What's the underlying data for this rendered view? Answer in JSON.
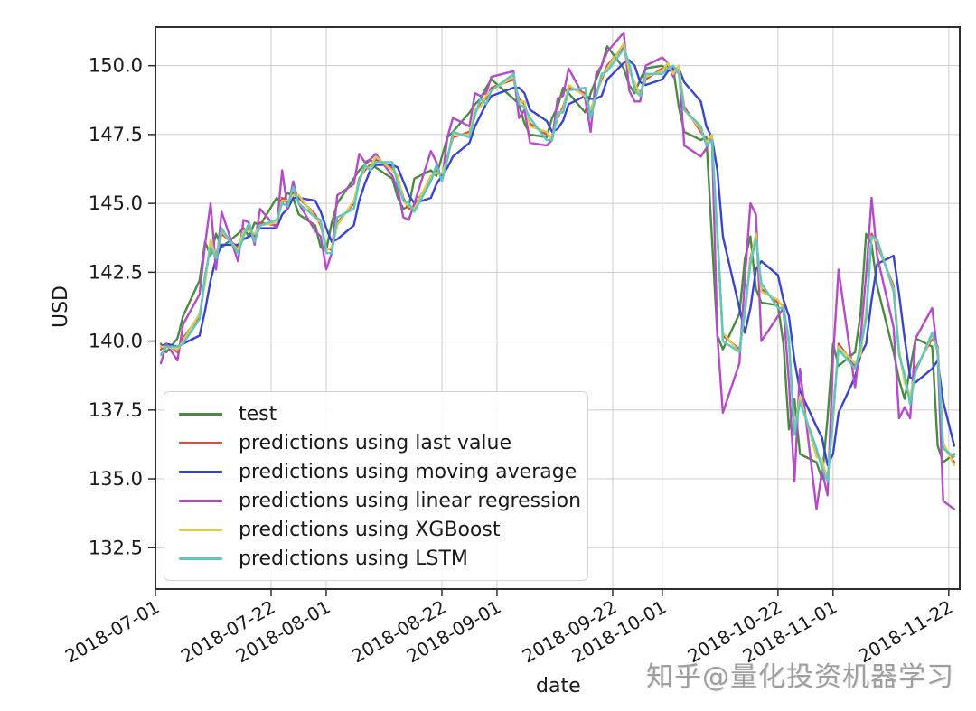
{
  "figure": {
    "watermark": "知乎@量化投资机器学习"
  },
  "chart_data": {
    "type": "line",
    "title": "",
    "xlabel": "date",
    "ylabel": "USD",
    "grid": true,
    "legend_position": "lower left",
    "ylim": [
      131.0,
      151.4
    ],
    "x_range": [
      "2018-07-01",
      "2018-11-24"
    ],
    "y_ticks": [
      132.5,
      135.0,
      137.5,
      140.0,
      142.5,
      145.0,
      147.5,
      150.0
    ],
    "x_ticks": [
      "2018-07-01",
      "2018-07-22",
      "2018-08-01",
      "2018-08-22",
      "2018-09-01",
      "2018-09-22",
      "2018-10-01",
      "2018-10-22",
      "2018-11-01",
      "2018-11-22"
    ],
    "dates": [
      "2018-07-02",
      "2018-07-03",
      "2018-07-05",
      "2018-07-06",
      "2018-07-09",
      "2018-07-10",
      "2018-07-11",
      "2018-07-12",
      "2018-07-13",
      "2018-07-16",
      "2018-07-17",
      "2018-07-18",
      "2018-07-19",
      "2018-07-20",
      "2018-07-23",
      "2018-07-24",
      "2018-07-25",
      "2018-07-26",
      "2018-07-27",
      "2018-07-30",
      "2018-07-31",
      "2018-08-01",
      "2018-08-02",
      "2018-08-03",
      "2018-08-06",
      "2018-08-07",
      "2018-08-08",
      "2018-08-09",
      "2018-08-10",
      "2018-08-13",
      "2018-08-14",
      "2018-08-15",
      "2018-08-16",
      "2018-08-17",
      "2018-08-20",
      "2018-08-21",
      "2018-08-22",
      "2018-08-23",
      "2018-08-24",
      "2018-08-27",
      "2018-08-28",
      "2018-08-29",
      "2018-08-30",
      "2018-08-31",
      "2018-09-04",
      "2018-09-05",
      "2018-09-06",
      "2018-09-07",
      "2018-09-10",
      "2018-09-11",
      "2018-09-12",
      "2018-09-13",
      "2018-09-14",
      "2018-09-17",
      "2018-09-18",
      "2018-09-19",
      "2018-09-20",
      "2018-09-21",
      "2018-09-24",
      "2018-09-25",
      "2018-09-26",
      "2018-09-27",
      "2018-09-28",
      "2018-10-01",
      "2018-10-02",
      "2018-10-03",
      "2018-10-04",
      "2018-10-05",
      "2018-10-08",
      "2018-10-09",
      "2018-10-10",
      "2018-10-11",
      "2018-10-12",
      "2018-10-15",
      "2018-10-16",
      "2018-10-17",
      "2018-10-18",
      "2018-10-19",
      "2018-10-22",
      "2018-10-23",
      "2018-10-24",
      "2018-10-25",
      "2018-10-26",
      "2018-10-29",
      "2018-10-30",
      "2018-10-31",
      "2018-11-01",
      "2018-11-02",
      "2018-11-05",
      "2018-11-06",
      "2018-11-07",
      "2018-11-08",
      "2018-11-09",
      "2018-11-12",
      "2018-11-13",
      "2018-11-14",
      "2018-11-15",
      "2018-11-16",
      "2018-11-19",
      "2018-11-20",
      "2018-11-21",
      "2018-11-23"
    ],
    "series": [
      {
        "id": "test",
        "name": "test",
        "color": "#4a8c3f",
        "values": [
          139.9,
          139.6,
          140.1,
          140.9,
          142.2,
          143.6,
          143.1,
          143.9,
          143.4,
          143.9,
          144.1,
          143.8,
          144.3,
          144.2,
          145.2,
          145.0,
          145.4,
          145.2,
          144.6,
          144.2,
          143.4,
          143.3,
          144.3,
          145.0,
          145.9,
          146.2,
          146.4,
          146.6,
          146.3,
          145.9,
          145.2,
          144.8,
          144.9,
          145.9,
          146.2,
          146.0,
          146.7,
          147.4,
          147.6,
          148.3,
          148.6,
          148.8,
          149.2,
          149.5,
          148.8,
          148.6,
          147.9,
          147.5,
          147.4,
          148.1,
          148.5,
          149.2,
          149.0,
          148.3,
          149.0,
          149.5,
          150.0,
          150.7,
          149.9,
          149.3,
          149.0,
          149.5,
          149.9,
          150.0,
          149.8,
          149.9,
          148.5,
          147.6,
          147.3,
          147.4,
          143.8,
          140.2,
          139.7,
          141.0,
          143.0,
          143.8,
          141.9,
          141.4,
          141.3,
          139.9,
          136.8,
          137.9,
          135.9,
          135.6,
          135.0,
          137.2,
          139.9,
          139.1,
          139.6,
          141.0,
          143.9,
          143.5,
          142.0,
          139.6,
          138.6,
          137.9,
          139.0,
          140.1,
          139.8,
          136.2,
          135.6,
          135.9
        ]
      },
      {
        "id": "last-value",
        "name": "predictions using last value",
        "color": "#e0493e",
        "values": [
          139.7,
          139.9,
          139.6,
          140.1,
          140.9,
          142.2,
          143.6,
          143.1,
          143.9,
          143.4,
          143.9,
          144.1,
          143.8,
          144.3,
          144.2,
          145.2,
          145.0,
          145.4,
          145.2,
          144.6,
          144.2,
          143.4,
          143.3,
          144.3,
          145.0,
          145.9,
          146.2,
          146.4,
          146.6,
          146.3,
          145.9,
          145.2,
          144.8,
          144.9,
          145.9,
          146.2,
          146.0,
          146.7,
          147.4,
          147.6,
          148.3,
          148.6,
          148.8,
          149.2,
          149.5,
          148.8,
          148.6,
          147.9,
          147.5,
          147.4,
          148.1,
          148.5,
          149.2,
          149.0,
          148.3,
          149.0,
          149.5,
          150.0,
          150.7,
          149.9,
          149.3,
          149.0,
          149.5,
          149.9,
          150.0,
          149.8,
          149.9,
          148.5,
          147.6,
          147.3,
          147.4,
          143.8,
          140.2,
          139.7,
          141.0,
          143.0,
          143.8,
          141.9,
          141.4,
          141.3,
          139.9,
          136.8,
          137.9,
          135.9,
          135.6,
          135.0,
          137.2,
          139.9,
          139.1,
          139.6,
          141.0,
          143.9,
          143.5,
          142.0,
          139.6,
          138.6,
          137.9,
          139.0,
          140.1,
          139.8,
          136.2,
          135.6
        ]
      },
      {
        "id": "moving-average",
        "name": "predictions using moving average",
        "color": "#3a45cf",
        "values": [
          139.8,
          139.9,
          139.8,
          139.9,
          140.2,
          141.1,
          142.2,
          143.0,
          143.5,
          143.5,
          143.7,
          143.8,
          143.9,
          144.1,
          144.1,
          144.6,
          144.8,
          145.2,
          145.2,
          145.1,
          144.7,
          144.1,
          143.6,
          143.7,
          144.2,
          145.1,
          145.7,
          146.2,
          146.4,
          146.4,
          146.3,
          145.8,
          145.3,
          145.0,
          145.2,
          145.7,
          146.0,
          146.3,
          146.7,
          147.2,
          147.8,
          148.2,
          148.6,
          148.9,
          149.2,
          149.2,
          149.0,
          148.4,
          148.0,
          147.6,
          147.7,
          148.0,
          148.6,
          148.9,
          148.8,
          148.8,
          148.9,
          149.5,
          150.1,
          150.2,
          150.0,
          149.4,
          149.3,
          149.5,
          149.8,
          149.9,
          149.9,
          149.4,
          148.7,
          147.8,
          147.4,
          146.2,
          143.8,
          141.2,
          140.3,
          141.2,
          142.6,
          142.9,
          142.4,
          141.5,
          140.9,
          139.3,
          138.2,
          136.9,
          136.5,
          135.5,
          135.9,
          137.4,
          138.7,
          139.5,
          139.9,
          141.5,
          142.8,
          143.1,
          141.7,
          140.1,
          138.7,
          138.5,
          139.0,
          139.3,
          137.8,
          136.2
        ]
      },
      {
        "id": "linear-regression",
        "name": "predictions using linear regression",
        "color": "#b44bc8",
        "values": [
          139.2,
          139.9,
          139.3,
          140.6,
          141.7,
          143.5,
          145.0,
          142.6,
          144.7,
          142.9,
          144.4,
          144.3,
          143.5,
          144.8,
          144.1,
          146.2,
          144.8,
          145.8,
          145.0,
          144.0,
          143.8,
          142.6,
          143.2,
          145.3,
          145.7,
          146.8,
          146.5,
          146.6,
          146.8,
          146.0,
          145.5,
          144.5,
          144.4,
          145.0,
          146.9,
          146.5,
          145.8,
          147.4,
          148.1,
          147.8,
          149.0,
          148.9,
          149.0,
          149.6,
          149.8,
          148.1,
          148.4,
          147.2,
          147.1,
          147.3,
          148.8,
          148.9,
          149.9,
          148.8,
          147.6,
          149.7,
          150.0,
          150.5,
          151.2,
          149.1,
          148.7,
          148.7,
          150.0,
          150.3,
          150.1,
          149.6,
          150.0,
          147.1,
          146.7,
          147.0,
          147.5,
          140.2,
          137.4,
          139.2,
          142.3,
          145.0,
          144.6,
          140.0,
          140.9,
          141.2,
          138.5,
          134.9,
          139.0,
          133.9,
          135.3,
          134.4,
          139.4,
          142.6,
          138.3,
          140.1,
          142.4,
          145.2,
          143.1,
          140.5,
          137.2,
          137.6,
          137.2,
          140.1,
          141.2,
          139.5,
          134.2,
          133.9
        ]
      },
      {
        "id": "xgboost",
        "name": "predictions using XGBoost",
        "color": "#d8cd54",
        "values": [
          139.8,
          139.8,
          139.7,
          140.0,
          141.0,
          142.1,
          143.7,
          143.0,
          144.0,
          143.3,
          144.0,
          144.0,
          143.9,
          144.2,
          144.3,
          145.1,
          145.1,
          145.3,
          145.3,
          144.5,
          144.3,
          143.3,
          143.4,
          144.2,
          145.1,
          145.8,
          146.3,
          146.3,
          146.7,
          146.2,
          146.0,
          145.1,
          144.9,
          144.8,
          146.0,
          146.1,
          146.1,
          146.6,
          147.5,
          147.5,
          148.4,
          148.5,
          148.9,
          149.1,
          149.6,
          148.7,
          148.7,
          147.8,
          147.6,
          147.3,
          148.2,
          148.4,
          149.3,
          148.9,
          148.4,
          148.9,
          149.6,
          149.9,
          150.8,
          149.8,
          149.4,
          148.9,
          149.6,
          149.8,
          150.1,
          149.7,
          150.0,
          148.4,
          147.7,
          147.2,
          147.5,
          143.7,
          140.3,
          139.6,
          141.1,
          142.9,
          143.9,
          141.8,
          141.5,
          141.2,
          140.0,
          136.7,
          138.0,
          135.8,
          135.7,
          134.9,
          137.3,
          139.8,
          139.2,
          139.5,
          141.1,
          143.8,
          143.6,
          141.9,
          139.7,
          138.5,
          138.0,
          138.9,
          140.2,
          139.7,
          136.3,
          135.5
        ]
      },
      {
        "id": "lstm",
        "name": "predictions using LSTM",
        "color": "#5bc8c0",
        "values": [
          139.5,
          139.8,
          139.8,
          139.9,
          140.8,
          142.4,
          143.4,
          143.0,
          144.1,
          143.2,
          143.8,
          144.3,
          143.6,
          144.2,
          144.4,
          145.0,
          144.9,
          145.6,
          145.0,
          144.5,
          144.4,
          143.2,
          143.2,
          144.5,
          144.8,
          145.8,
          146.4,
          146.2,
          146.5,
          146.5,
          145.7,
          145.1,
          145.0,
          144.7,
          145.8,
          146.4,
          145.8,
          146.6,
          147.6,
          147.4,
          148.2,
          148.8,
          148.6,
          149.1,
          149.7,
          148.6,
          148.5,
          148.1,
          147.3,
          147.3,
          148.3,
          148.3,
          149.1,
          149.2,
          148.1,
          148.9,
          149.7,
          149.8,
          150.6,
          150.1,
          149.1,
          148.9,
          149.7,
          149.7,
          149.9,
          150.0,
          149.7,
          148.4,
          147.8,
          147.1,
          147.3,
          144.0,
          140.0,
          139.6,
          141.2,
          142.8,
          143.7,
          142.1,
          141.2,
          141.2,
          140.1,
          136.6,
          137.8,
          136.1,
          135.4,
          134.9,
          137.4,
          139.7,
          139.0,
          139.8,
          140.8,
          143.8,
          143.7,
          141.8,
          139.5,
          138.8,
          137.7,
          138.9,
          140.3,
          139.6,
          136.1,
          135.8
        ]
      }
    ],
    "style": {
      "grid_color": "#cccccc",
      "spine_color": "#2e2e2e",
      "tick_label_color": "#1a1a1a",
      "background": "#ffffff"
    }
  }
}
